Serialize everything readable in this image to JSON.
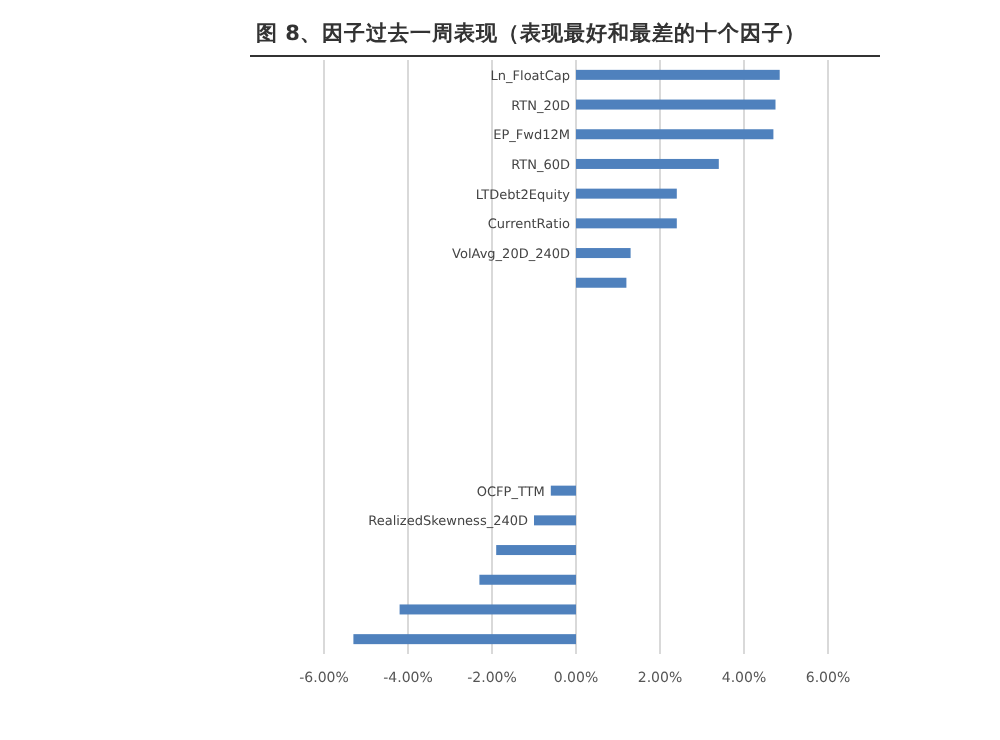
{
  "chart_data": {
    "type": "bar",
    "orientation": "horizontal",
    "title": "图 8、因子过去一周表现（表现最好和最差的十个因子）",
    "categories": [
      "Ln_FloatCap",
      "RTN_20D",
      "EP_Fwd12M",
      "RTN_60D",
      "LTDebt2Equity",
      "CurrentRatio",
      "VolAvg_20D_240D",
      null,
      null,
      null,
      null,
      null,
      null,
      null,
      "OCFP_TTM",
      "RealizedSkewness_240D",
      null,
      null,
      null,
      null
    ],
    "values": [
      4.85,
      4.75,
      4.7,
      3.4,
      2.4,
      2.4,
      1.3,
      1.2,
      null,
      null,
      null,
      null,
      null,
      null,
      -0.6,
      -1.0,
      -1.9,
      -2.3,
      -4.2,
      -5.3
    ],
    "color": "#4f81bd",
    "xlim": [
      -6,
      6
    ],
    "xticks": [
      {
        "value": -6,
        "label": "-6.00%"
      },
      {
        "value": -4,
        "label": "-4.00%"
      },
      {
        "value": -2,
        "label": "-2.00%"
      },
      {
        "value": 0,
        "label": "0.00%"
      },
      {
        "value": 2,
        "label": "2.00%"
      },
      {
        "value": 4,
        "label": "4.00%"
      },
      {
        "value": 6,
        "label": "6.00%"
      }
    ],
    "grid": "x"
  }
}
